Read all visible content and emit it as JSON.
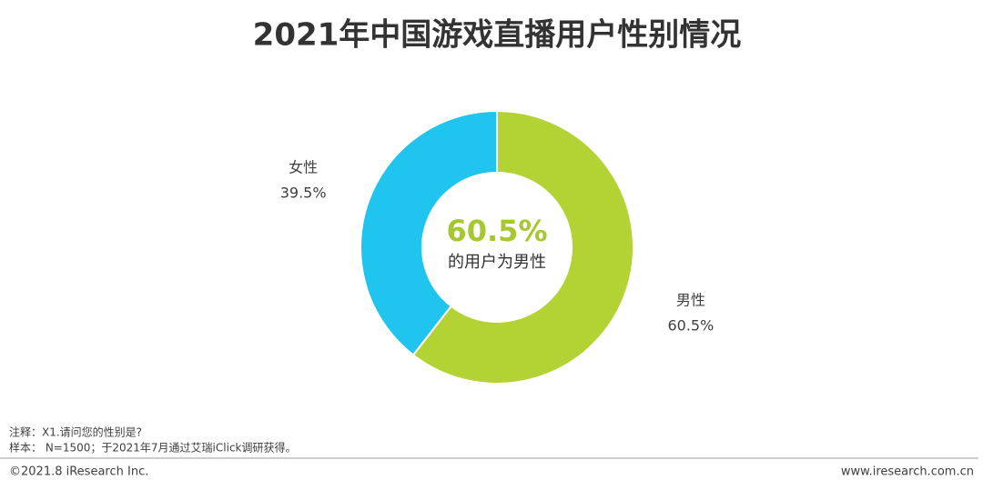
{
  "chart_data": {
    "type": "donut",
    "title": "2021年中国游戏直播用户性别情况",
    "categories": [
      "男性",
      "女性"
    ],
    "values": [
      60.5,
      39.5
    ],
    "value_labels": [
      "60.5%",
      "39.5%"
    ],
    "colors": [
      "#b3d234",
      "#1fc4ef"
    ],
    "center_annotation": [
      "60.5%",
      "的用户为男性"
    ]
  },
  "notes": [
    "注释：X1.请问您的性别是?",
    "样本： N=1500；于2021年7月通过艾瑞iClick调研获得。"
  ],
  "footer": {
    "copyright": "©2021.8 iResearch Inc.",
    "website": "www.iresearch.com.cn"
  }
}
